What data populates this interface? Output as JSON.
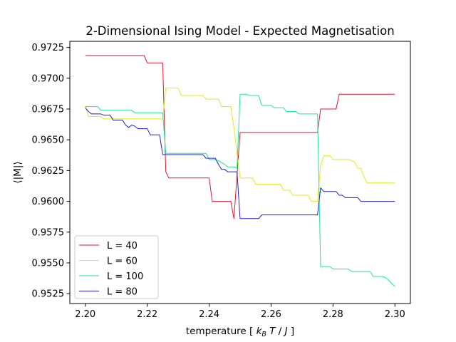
{
  "chart_data": {
    "type": "line",
    "title": "2-Dimensional Ising Model - Expected Magnetisation",
    "xlabel": "temperature [ k_B T / J ]",
    "xlabel_parts": {
      "open": "temperature [ ",
      "k": "k",
      "b": "B",
      "t": " T",
      "slash": " / ",
      "j": "J",
      "close": " ]"
    },
    "ylabel": "⟨|M|⟩",
    "xlim": [
      2.195,
      2.305
    ],
    "ylim": [
      0.9517,
      0.973
    ],
    "xticks": [
      2.2,
      2.22,
      2.24,
      2.26,
      2.28,
      2.3
    ],
    "xtick_labels": [
      "2.20",
      "2.22",
      "2.24",
      "2.26",
      "2.28",
      "2.30"
    ],
    "yticks": [
      0.9525,
      0.955,
      0.9575,
      0.96,
      0.9625,
      0.965,
      0.9675,
      0.97,
      0.9725
    ],
    "ytick_labels": [
      "0.9525",
      "0.9550",
      "0.9575",
      "0.9600",
      "0.9625",
      "0.9650",
      "0.9675",
      "0.9700",
      "0.9725"
    ],
    "grid": false,
    "legend_position": "lower-left",
    "series": [
      {
        "name": "L = 40",
        "color": "#e8132b",
        "points": [
          [
            2.2,
            0.97185
          ],
          [
            2.219,
            0.97185
          ],
          [
            2.22,
            0.97125
          ],
          [
            2.225,
            0.97125
          ],
          [
            2.226,
            0.9624
          ],
          [
            2.227,
            0.9619
          ],
          [
            2.239,
            0.9619
          ],
          [
            2.24,
            0.9619
          ],
          [
            2.241,
            0.96
          ],
          [
            2.246,
            0.96
          ],
          [
            2.247,
            0.96
          ],
          [
            2.248,
            0.9586
          ],
          [
            2.25,
            0.9656
          ],
          [
            2.275,
            0.9656
          ],
          [
            2.276,
            0.9675
          ],
          [
            2.281,
            0.9675
          ],
          [
            2.282,
            0.9687
          ],
          [
            2.3,
            0.9687
          ]
        ]
      },
      {
        "name": "L = 60",
        "color": "#dcec1c",
        "points": [
          [
            2.2,
            0.9678
          ],
          [
            2.201,
            0.9669
          ],
          [
            2.205,
            0.9669
          ],
          [
            2.206,
            0.9667
          ],
          [
            2.225,
            0.9667
          ],
          [
            2.226,
            0.9692
          ],
          [
            2.229,
            0.9692
          ],
          [
            2.23,
            0.9692
          ],
          [
            2.231,
            0.9686
          ],
          [
            2.238,
            0.9686
          ],
          [
            2.239,
            0.9683
          ],
          [
            2.243,
            0.9683
          ],
          [
            2.244,
            0.9677
          ],
          [
            2.247,
            0.9677
          ],
          [
            2.248,
            0.966
          ],
          [
            2.25,
            0.9619
          ],
          [
            2.254,
            0.9619
          ],
          [
            2.255,
            0.9614
          ],
          [
            2.263,
            0.9614
          ],
          [
            2.264,
            0.9609
          ],
          [
            2.266,
            0.9609
          ],
          [
            2.267,
            0.9605
          ],
          [
            2.272,
            0.9605
          ],
          [
            2.273,
            0.96
          ],
          [
            2.275,
            0.96
          ],
          [
            2.276,
            0.9629
          ],
          [
            2.277,
            0.9637
          ],
          [
            2.279,
            0.9637
          ],
          [
            2.28,
            0.9634
          ],
          [
            2.285,
            0.9634
          ],
          [
            2.287,
            0.9632
          ],
          [
            2.288,
            0.9627
          ],
          [
            2.289,
            0.9627
          ],
          [
            2.29,
            0.962
          ],
          [
            2.291,
            0.9615
          ],
          [
            2.3,
            0.9615
          ]
        ]
      },
      {
        "name": "L = 100",
        "color": "#19e893",
        "points": [
          [
            2.2,
            0.9677
          ],
          [
            2.204,
            0.9677
          ],
          [
            2.205,
            0.9674
          ],
          [
            2.215,
            0.9674
          ],
          [
            2.216,
            0.9672
          ],
          [
            2.225,
            0.9672
          ],
          [
            2.226,
            0.9639
          ],
          [
            2.239,
            0.9639
          ],
          [
            2.24,
            0.9634
          ],
          [
            2.242,
            0.9634
          ],
          [
            2.243,
            0.9633
          ],
          [
            2.245,
            0.963
          ],
          [
            2.246,
            0.9628
          ],
          [
            2.248,
            0.9628
          ],
          [
            2.249,
            0.9627
          ],
          [
            2.25,
            0.9687
          ],
          [
            2.252,
            0.9687
          ],
          [
            2.253,
            0.9686
          ],
          [
            2.256,
            0.9686
          ],
          [
            2.257,
            0.9678
          ],
          [
            2.26,
            0.9678
          ],
          [
            2.261,
            0.9676
          ],
          [
            2.264,
            0.9676
          ],
          [
            2.265,
            0.9673
          ],
          [
            2.268,
            0.9673
          ],
          [
            2.269,
            0.9671
          ],
          [
            2.275,
            0.9671
          ],
          [
            2.276,
            0.9547
          ],
          [
            2.279,
            0.9547
          ],
          [
            2.28,
            0.9545
          ],
          [
            2.285,
            0.9545
          ],
          [
            2.286,
            0.9543
          ],
          [
            2.292,
            0.9543
          ],
          [
            2.293,
            0.9539
          ],
          [
            2.296,
            0.9539
          ],
          [
            2.297,
            0.9538
          ],
          [
            2.298,
            0.9536
          ],
          [
            2.299,
            0.9533
          ],
          [
            2.3,
            0.9531
          ]
        ]
      },
      {
        "name": "L = 80",
        "color": "#1f1fe0",
        "points": [
          [
            2.2,
            0.9676
          ],
          [
            2.201,
            0.9673
          ],
          [
            2.202,
            0.9671
          ],
          [
            2.205,
            0.9671
          ],
          [
            2.206,
            0.967
          ],
          [
            2.208,
            0.967
          ],
          [
            2.209,
            0.9666
          ],
          [
            2.212,
            0.9666
          ],
          [
            2.213,
            0.9662
          ],
          [
            2.214,
            0.966
          ],
          [
            2.215,
            0.9662
          ],
          [
            2.216,
            0.9661
          ],
          [
            2.217,
            0.9659
          ],
          [
            2.22,
            0.9659
          ],
          [
            2.221,
            0.9654
          ],
          [
            2.224,
            0.9654
          ],
          [
            2.225,
            0.9638
          ],
          [
            2.238,
            0.9638
          ],
          [
            2.239,
            0.9635
          ],
          [
            2.242,
            0.9635
          ],
          [
            2.243,
            0.963
          ],
          [
            2.244,
            0.9626
          ],
          [
            2.245,
            0.9626
          ],
          [
            2.246,
            0.9624
          ],
          [
            2.249,
            0.9624
          ],
          [
            2.25,
            0.9586
          ],
          [
            2.256,
            0.9586
          ],
          [
            2.257,
            0.9589
          ],
          [
            2.275,
            0.9589
          ],
          [
            2.276,
            0.9611
          ],
          [
            2.277,
            0.9608
          ],
          [
            2.281,
            0.9608
          ],
          [
            2.282,
            0.9605
          ],
          [
            2.283,
            0.9605
          ],
          [
            2.284,
            0.9603
          ],
          [
            2.288,
            0.9603
          ],
          [
            2.289,
            0.96
          ],
          [
            2.3,
            0.96
          ]
        ]
      }
    ]
  }
}
